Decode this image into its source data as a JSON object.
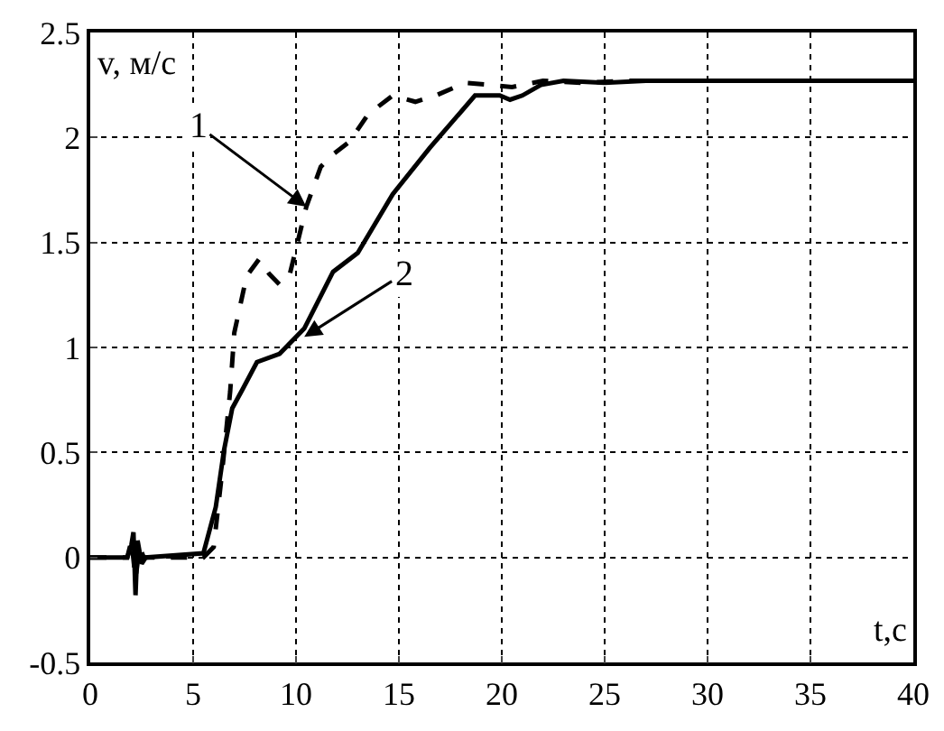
{
  "chart_data": {
    "type": "line",
    "xlabel": "t,c",
    "ylabel": "v, м/с",
    "xlim": [
      0,
      40
    ],
    "xticks": [
      0,
      5,
      10,
      15,
      20,
      25,
      30,
      35,
      40
    ],
    "ylim": [
      -0.5,
      2.5
    ],
    "yticks": [
      -0.5,
      0,
      0.5,
      1,
      1.5,
      2,
      2.5
    ],
    "grid": true,
    "series": [
      {
        "color": "#000000",
        "line_style": "dashed",
        "x": [
          0,
          1.8,
          2.0,
          2.2,
          2.4,
          2.6,
          5.5,
          6.0,
          6.4,
          6.8,
          7.0,
          7.6,
          8.2,
          8.7,
          9.2,
          9.7,
          10.5,
          11.2,
          11.8,
          12.6,
          13.5,
          14.7,
          15.8,
          16.8,
          18.2,
          19.5,
          20.5,
          22,
          24,
          26,
          30,
          40
        ],
        "values": [
          0,
          0,
          0.08,
          -0.1,
          0.05,
          0,
          0,
          0.05,
          0.4,
          0.79,
          1.07,
          1.34,
          1.42,
          1.35,
          1.3,
          1.35,
          1.67,
          1.86,
          1.92,
          1.98,
          2.11,
          2.2,
          2.17,
          2.2,
          2.26,
          2.25,
          2.24,
          2.27,
          2.26,
          2.27,
          2.27,
          2.27
        ]
      },
      {
        "color": "#000000",
        "line_style": "solid",
        "x": [
          0,
          1.8,
          2.0,
          2.1,
          2.2,
          2.3,
          2.5,
          2.7,
          5.5,
          6.1,
          6.5,
          6.9,
          7.4,
          8.1,
          9.2,
          10.4,
          11.8,
          13.0,
          14.7,
          16.5,
          18.7,
          19.9,
          20.4,
          21.0,
          21.9,
          23,
          25,
          27,
          30,
          40
        ],
        "values": [
          0,
          0,
          0.06,
          0.12,
          -0.18,
          0.08,
          -0.03,
          0,
          0.02,
          0.24,
          0.51,
          0.71,
          0.8,
          0.93,
          0.97,
          1.09,
          1.36,
          1.45,
          1.73,
          1.95,
          2.2,
          2.2,
          2.18,
          2.2,
          2.25,
          2.27,
          2.26,
          2.27,
          2.27,
          2.27
        ]
      }
    ],
    "annotations": [
      {
        "text": "1",
        "x": 10.5,
        "y": 1.67
      },
      {
        "text": "2",
        "x": 10.4,
        "y": 1.05
      }
    ]
  }
}
